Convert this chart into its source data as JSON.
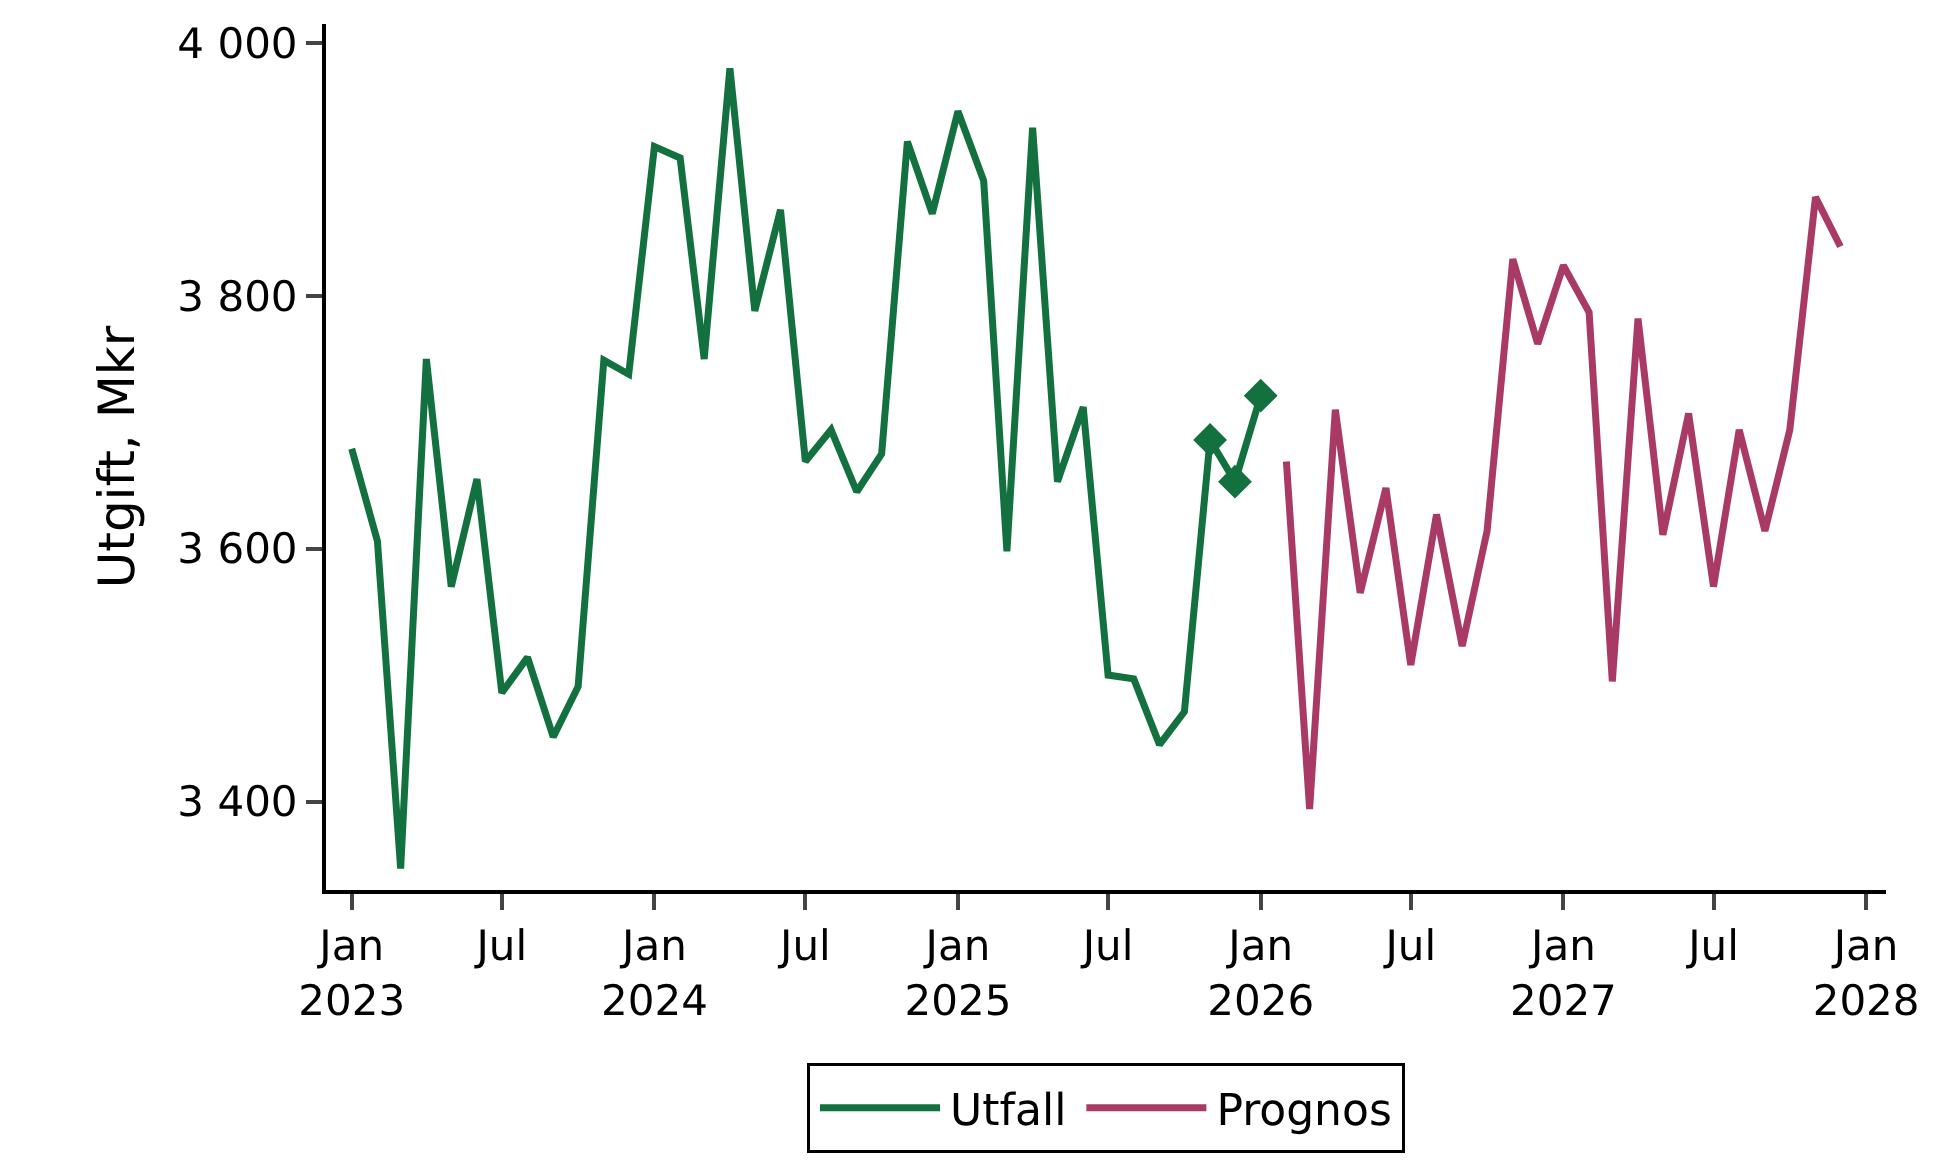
{
  "chart_data": {
    "type": "line",
    "ylabel": "Utgift, Mkr",
    "legend": "bottom",
    "xlim": [
      "2022-12-01",
      "2028-01-25"
    ],
    "ylim": [
      3330,
      4015
    ],
    "yticks": [
      {
        "value": 3400,
        "label": "3 400"
      },
      {
        "value": 3600,
        "label": "3 600"
      },
      {
        "value": 3800,
        "label": "3 800"
      },
      {
        "value": 4000,
        "label": "4 000"
      }
    ],
    "xticks": [
      {
        "value": "2023-01",
        "label": "Jan\n2023"
      },
      {
        "value": "2023-07",
        "label": "Jul"
      },
      {
        "value": "2024-01",
        "label": "Jan\n2024"
      },
      {
        "value": "2024-07",
        "label": "Jul"
      },
      {
        "value": "2025-01",
        "label": "Jan\n2025"
      },
      {
        "value": "2025-07",
        "label": "Jul"
      },
      {
        "value": "2026-01",
        "label": "Jan\n2026"
      },
      {
        "value": "2026-07",
        "label": "Jul"
      },
      {
        "value": "2027-01",
        "label": "Jan\n2027"
      },
      {
        "value": "2027-07",
        "label": "Jul"
      },
      {
        "value": "2028-01",
        "label": "Jan\n2028"
      }
    ],
    "series": [
      {
        "name": "Utfall",
        "color": "#13703f",
        "marker": "none",
        "x": [
          "2023-01",
          "2023-02",
          "2023-03",
          "2023-04",
          "2023-05",
          "2023-06",
          "2023-07",
          "2023-08",
          "2023-09",
          "2023-10",
          "2023-11",
          "2023-12",
          "2024-01",
          "2024-02",
          "2024-03",
          "2024-04",
          "2024-05",
          "2024-06",
          "2024-07",
          "2024-08",
          "2024-09",
          "2024-10",
          "2024-11",
          "2024-12",
          "2025-01",
          "2025-02",
          "2025-03",
          "2025-04",
          "2025-05",
          "2025-06",
          "2025-07",
          "2025-08",
          "2025-09",
          "2025-10",
          "2025-11"
        ],
        "values": [
          3679,
          3606,
          3347,
          3750,
          3570,
          3655,
          3486,
          3514,
          3451,
          3491,
          3749,
          3738,
          3918,
          3909,
          3750,
          3980,
          3788,
          3868,
          3669,
          3694,
          3645,
          3675,
          3922,
          3865,
          3946,
          3891,
          3598,
          3933,
          3653,
          3712,
          3500,
          3497,
          3445,
          3471,
          3686
        ]
      },
      {
        "color": "#13703f",
        "marker": "diamond",
        "x": [
          "2025-11",
          "2025-12",
          "2026-01"
        ],
        "values": [
          3686,
          3653,
          3721
        ]
      },
      {
        "name": "Prognos",
        "color": "#a83a65",
        "marker": "none",
        "x": [
          "2026-02",
          "2026-03",
          "2026-04",
          "2026-05",
          "2026-06",
          "2026-07",
          "2026-08",
          "2026-09",
          "2026-10",
          "2026-11",
          "2026-12",
          "2027-01",
          "2027-02",
          "2027-03",
          "2027-04",
          "2027-05",
          "2027-06",
          "2027-07",
          "2027-08",
          "2027-09",
          "2027-10",
          "2027-11",
          "2027-12"
        ],
        "values": [
          3669,
          3394,
          3710,
          3565,
          3648,
          3508,
          3627,
          3523,
          3614,
          3829,
          3762,
          3824,
          3787,
          3495,
          3782,
          3611,
          3707,
          3570,
          3694,
          3614,
          3694,
          3878,
          3839
        ]
      }
    ]
  }
}
